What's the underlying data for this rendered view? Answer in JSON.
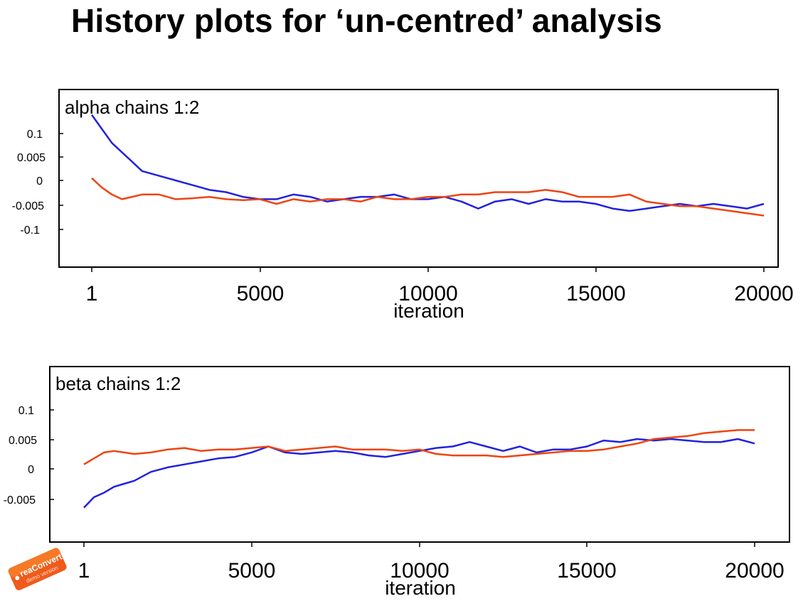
{
  "slide": {
    "title": "History plots for ‘un-centred’ analysis"
  },
  "colors": {
    "chain1": "#2222dd",
    "chain2": "#ee4411",
    "frame": "#000000"
  },
  "chart_data": [
    {
      "type": "line",
      "title": "alpha chains 1:2",
      "xlabel": "iteration",
      "ylabel": "",
      "x_ticks": [
        1,
        5000,
        10000,
        15000,
        20000
      ],
      "x_tick_labels": [
        "1",
        "5000",
        "10000",
        "15000",
        "20000"
      ],
      "xlim": [
        1,
        20000
      ],
      "y_tick_labels": [
        "0.1",
        "0.005",
        "0",
        "-0.005",
        "-0.1"
      ],
      "series": [
        {
          "color": "#2222dd",
          "x": [
            1,
            300,
            600,
            900,
            1200,
            1500,
            2000,
            2500,
            3000,
            3500,
            4000,
            4500,
            5000,
            5500,
            6000,
            6500,
            7000,
            7500,
            8000,
            8500,
            9000,
            9500,
            10000,
            10500,
            11000,
            11500,
            12000,
            12500,
            13000,
            13500,
            14000,
            14500,
            15000,
            15500,
            16000,
            16500,
            17000,
            17500,
            18000,
            18500,
            19000,
            19500,
            20000
          ],
          "y": [
            0.9,
            0.6,
            0.3,
            0.1,
            -0.1,
            -0.3,
            -0.4,
            -0.5,
            -0.6,
            -0.7,
            -0.75,
            -0.85,
            -0.9,
            -0.9,
            -0.8,
            -0.85,
            -0.95,
            -0.9,
            -0.85,
            -0.85,
            -0.8,
            -0.9,
            -0.9,
            -0.85,
            -0.95,
            -1.1,
            -0.95,
            -0.9,
            -1.0,
            -0.9,
            -0.95,
            -0.95,
            -1.0,
            -1.1,
            -1.15,
            -1.1,
            -1.05,
            -1.0,
            -1.05,
            -1.0,
            -1.05,
            -1.1,
            -1.0
          ]
        },
        {
          "color": "#ee4411",
          "x": [
            1,
            300,
            600,
            900,
            1200,
            1500,
            2000,
            2500,
            3000,
            3500,
            4000,
            4500,
            5000,
            5500,
            6000,
            6500,
            7000,
            7500,
            8000,
            8500,
            9000,
            9500,
            10000,
            10500,
            11000,
            11500,
            12000,
            12500,
            13000,
            13500,
            14000,
            14500,
            15000,
            15500,
            16000,
            16500,
            17000,
            17500,
            18000,
            18500,
            19000,
            19500,
            20000
          ],
          "y": [
            -0.45,
            -0.65,
            -0.8,
            -0.9,
            -0.85,
            -0.8,
            -0.8,
            -0.9,
            -0.88,
            -0.85,
            -0.9,
            -0.92,
            -0.9,
            -1.0,
            -0.9,
            -0.95,
            -0.9,
            -0.9,
            -0.95,
            -0.85,
            -0.9,
            -0.9,
            -0.85,
            -0.85,
            -0.8,
            -0.8,
            -0.75,
            -0.75,
            -0.75,
            -0.7,
            -0.75,
            -0.85,
            -0.85,
            -0.85,
            -0.8,
            -0.95,
            -1.0,
            -1.05,
            -1.05,
            -1.1,
            -1.15,
            -1.2,
            -1.25
          ]
        }
      ]
    },
    {
      "type": "line",
      "title": "beta chains 1:2",
      "xlabel": "iteration",
      "ylabel": "",
      "x_ticks": [
        1,
        5000,
        10000,
        15000,
        20000
      ],
      "x_tick_labels": [
        "1",
        "5000",
        "10000",
        "15000",
        "20000"
      ],
      "xlim": [
        1,
        20000
      ],
      "y_tick_labels": [
        "0.1",
        "0.005",
        "0",
        "-0.005"
      ],
      "series": [
        {
          "color": "#2222dd",
          "x": [
            1,
            300,
            600,
            900,
            1200,
            1500,
            2000,
            2500,
            3000,
            3500,
            4000,
            4500,
            5000,
            5500,
            6000,
            6500,
            7000,
            7500,
            8000,
            8500,
            9000,
            9500,
            10000,
            10500,
            11000,
            11500,
            12000,
            12500,
            13000,
            13500,
            14000,
            14500,
            15000,
            15500,
            16000,
            16500,
            17000,
            17500,
            18000,
            18500,
            19000,
            19500,
            20000
          ],
          "y": [
            -1.3,
            -0.95,
            -0.8,
            -0.6,
            -0.5,
            -0.4,
            -0.1,
            0.05,
            0.15,
            0.25,
            0.35,
            0.4,
            0.55,
            0.75,
            0.55,
            0.5,
            0.55,
            0.6,
            0.55,
            0.45,
            0.4,
            0.5,
            0.6,
            0.7,
            0.75,
            0.9,
            0.75,
            0.6,
            0.75,
            0.55,
            0.65,
            0.65,
            0.75,
            0.95,
            0.9,
            1.0,
            0.95,
            1.0,
            0.95,
            0.9,
            0.9,
            1.0,
            0.85
          ]
        },
        {
          "color": "#ee4411",
          "x": [
            1,
            300,
            600,
            900,
            1200,
            1500,
            2000,
            2500,
            3000,
            3500,
            4000,
            4500,
            5000,
            5500,
            6000,
            6500,
            7000,
            7500,
            8000,
            8500,
            9000,
            9500,
            10000,
            10500,
            11000,
            11500,
            12000,
            12500,
            13000,
            13500,
            14000,
            14500,
            15000,
            15500,
            16000,
            16500,
            17000,
            17500,
            18000,
            18500,
            19000,
            19500,
            20000
          ],
          "y": [
            0.15,
            0.35,
            0.55,
            0.6,
            0.55,
            0.5,
            0.55,
            0.65,
            0.7,
            0.6,
            0.65,
            0.65,
            0.7,
            0.75,
            0.6,
            0.65,
            0.7,
            0.75,
            0.65,
            0.65,
            0.65,
            0.6,
            0.65,
            0.5,
            0.45,
            0.45,
            0.45,
            0.4,
            0.45,
            0.5,
            0.55,
            0.6,
            0.6,
            0.65,
            0.75,
            0.85,
            1.0,
            1.05,
            1.1,
            1.2,
            1.25,
            1.3,
            1.3
          ]
        }
      ]
    }
  ],
  "watermark": {
    "brand": "reaConverter",
    "note": "demo version"
  }
}
